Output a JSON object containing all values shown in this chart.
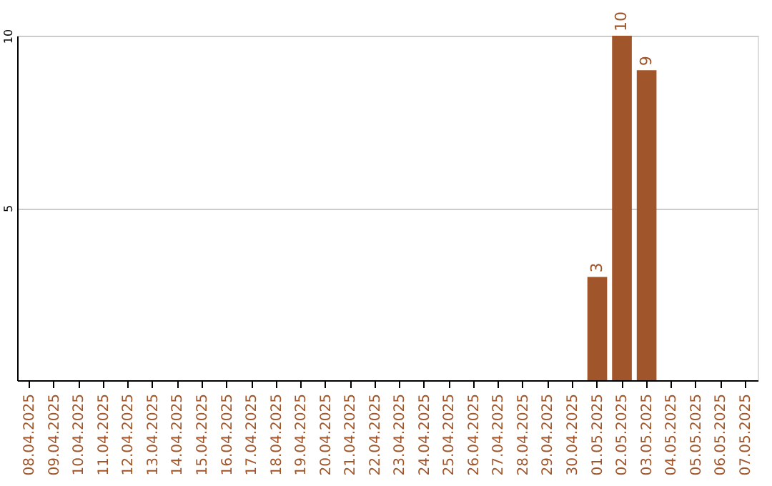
{
  "chart_data": {
    "type": "bar",
    "categories": [
      "08.04.2025",
      "09.04.2025",
      "10.04.2025",
      "11.04.2025",
      "12.04.2025",
      "13.04.2025",
      "14.04.2025",
      "15.04.2025",
      "16.04.2025",
      "17.04.2025",
      "18.04.2025",
      "19.04.2025",
      "20.04.2025",
      "21.04.2025",
      "22.04.2025",
      "23.04.2025",
      "24.04.2025",
      "25.04.2025",
      "26.04.2025",
      "27.04.2025",
      "28.04.2025",
      "29.04.2025",
      "30.04.2025",
      "01.05.2025",
      "02.05.2025",
      "03.05.2025",
      "04.05.2025",
      "05.05.2025",
      "06.05.2025",
      "07.05.2025"
    ],
    "values": [
      0,
      0,
      0,
      0,
      0,
      0,
      0,
      0,
      0,
      0,
      0,
      0,
      0,
      0,
      0,
      0,
      0,
      0,
      0,
      0,
      0,
      0,
      0,
      3,
      10,
      9,
      0,
      0,
      0,
      0
    ],
    "value_labels": [
      null,
      null,
      null,
      null,
      null,
      null,
      null,
      null,
      null,
      null,
      null,
      null,
      null,
      null,
      null,
      null,
      null,
      null,
      null,
      null,
      null,
      null,
      null,
      "3",
      "10",
      "9",
      null,
      null,
      null,
      null
    ],
    "color": "#a0562a",
    "ylim": [
      0,
      10
    ],
    "yticks": [
      5,
      10
    ],
    "grid": "y"
  }
}
